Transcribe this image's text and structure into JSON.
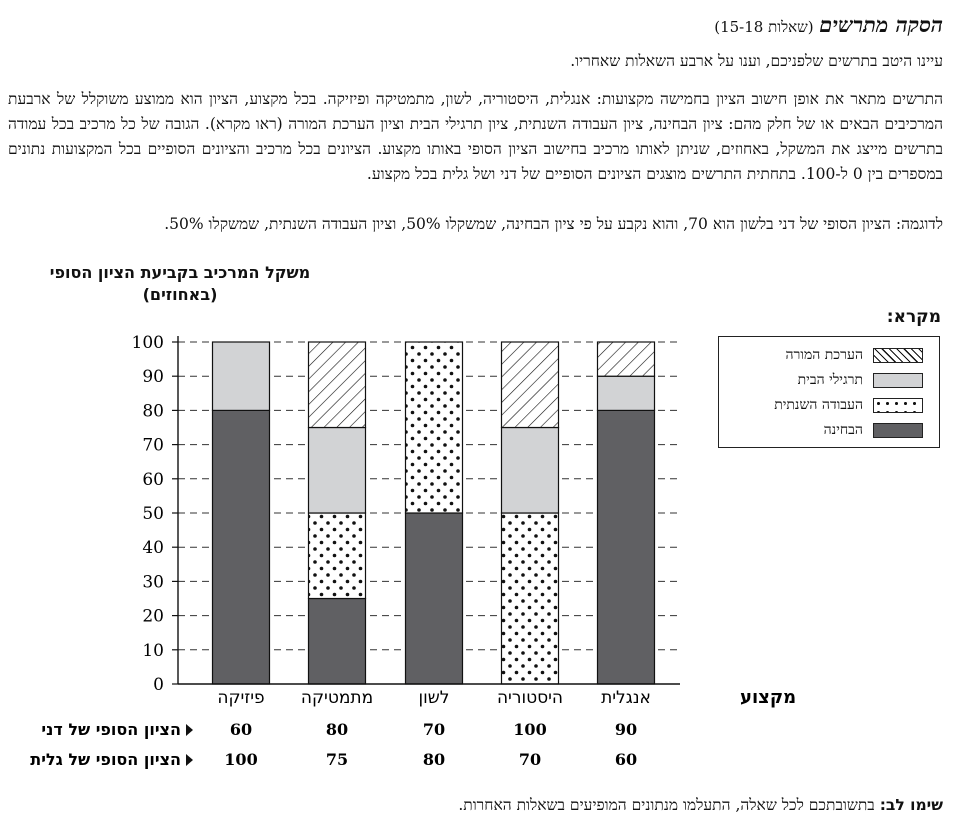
{
  "header": {
    "title": "הסקה מתרשים",
    "subtitle": "(שאלות 15-18)"
  },
  "intro": "עיינו היטב בתרשים שלפניכם, וענו על ארבע השאלות שאחריו.",
  "description": "התרשים מתאר את אופן חישוב הציון בחמישה מקצועות: אנגלית, היסטוריה, לשון, מתמטיקה ופיזיקה. בכל מקצוע, הציון הוא ממוצע משוקלל של ארבעת המרכיבים הבאים או של חלק מהם: ציון הבחינה, ציון העבודה השנתית, ציון תרגילי הבית וציון הערכת המורה (ראו מקרא). הגובה של כל מרכיב בכל עמודה בתרשים מייצג את המשקל, באחוזים, שניתן לאותו מרכיב בחישוב הציון הסופי באותו מקצוע. הציונים בכל מרכיב והציונים הסופיים בכל המקצועות נתונים במספרים בין 0 ל-100. בתחתית התרשים מוצגים הציונים הסופיים של דני ושל גלית בכל מקצוע.",
  "example": "לדוגמה: הציון הסופי של דני בלשון הוא 70, והוא נקבע על פי ציון הבחינה, שמשקלו 50%, וציון העבודה השנתית, שמשקלו 50%.",
  "note": {
    "label": "שימו לב:",
    "text": " בתשובתכם לכל שאלה, התעלמו מנתונים המופיעים בשאלות האחרות."
  },
  "chart_data": {
    "type": "bar",
    "stacked": true,
    "ylabel": "משקל המרכיב בקביעת הציון הסופי (באחוזים)",
    "xlabel": "מקצוע",
    "ylim": [
      0,
      100
    ],
    "yticks": [
      0,
      10,
      20,
      30,
      40,
      50,
      60,
      70,
      80,
      90,
      100
    ],
    "grid": "dashed-horizontal",
    "categories": [
      "אנגלית",
      "היסטוריה",
      "לשון",
      "מתמטיקה",
      "פיזיקה"
    ],
    "legend_title": "מקרא:",
    "legend_position": "right",
    "series": [
      {
        "name": "הבחינה",
        "pattern": "solid-dark",
        "color": "#606063",
        "values": [
          80,
          0,
          50,
          25,
          80
        ]
      },
      {
        "name": "העבודה השנתית",
        "pattern": "dots",
        "color": "#ffffff",
        "values": [
          0,
          50,
          50,
          25,
          0
        ]
      },
      {
        "name": "תרגילי הבית",
        "pattern": "solid-light",
        "color": "#d2d3d5",
        "values": [
          10,
          25,
          0,
          25,
          20
        ]
      },
      {
        "name": "הערכת המורה",
        "pattern": "diagonal-hatch",
        "color": "#ffffff",
        "values": [
          10,
          25,
          0,
          25,
          0
        ]
      }
    ],
    "final_scores": [
      {
        "name": "הציון הסופי של דני",
        "values": [
          90,
          100,
          70,
          80,
          60
        ]
      },
      {
        "name": "הציון הסופי של גלית",
        "values": [
          60,
          70,
          80,
          75,
          100
        ]
      }
    ]
  }
}
